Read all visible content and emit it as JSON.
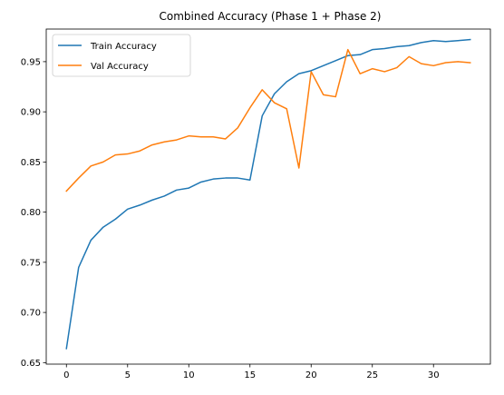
{
  "chart_data": {
    "type": "line",
    "title": "Combined Accuracy (Phase 1 + Phase 2)",
    "xlabel": "",
    "ylabel": "",
    "xlim": [
      -1.65,
      34.65
    ],
    "ylim": [
      0.6485,
      0.9825
    ],
    "grid": false,
    "legend_position": "top-left",
    "x_ticks": [
      0,
      5,
      10,
      15,
      20,
      25,
      30
    ],
    "y_ticks": [
      0.65,
      0.7,
      0.75,
      0.8,
      0.85,
      0.9,
      0.95
    ],
    "x_tick_labels": [
      "0",
      "5",
      "10",
      "15",
      "20",
      "25",
      "30"
    ],
    "y_tick_labels": [
      "0.65",
      "0.70",
      "0.75",
      "0.80",
      "0.85",
      "0.90",
      "0.95"
    ],
    "x": [
      0,
      1,
      2,
      3,
      4,
      5,
      6,
      7,
      8,
      9,
      10,
      11,
      12,
      13,
      14,
      15,
      16,
      17,
      18,
      19,
      20,
      21,
      22,
      23,
      24,
      25,
      26,
      27,
      28,
      29,
      30,
      31,
      32,
      33
    ],
    "series": [
      {
        "name": "Train Accuracy",
        "color": "#1f77b4",
        "values": [
          0.664,
          0.745,
          0.772,
          0.785,
          0.793,
          0.803,
          0.807,
          0.812,
          0.816,
          0.822,
          0.824,
          0.83,
          0.833,
          0.834,
          0.834,
          0.832,
          0.896,
          0.918,
          0.93,
          0.938,
          0.941,
          0.946,
          0.951,
          0.956,
          0.957,
          0.962,
          0.963,
          0.965,
          0.966,
          0.969,
          0.971,
          0.97,
          0.971,
          0.972
        ]
      },
      {
        "name": "Val Accuracy",
        "color": "#ff7f0e",
        "values": [
          0.821,
          0.834,
          0.846,
          0.85,
          0.857,
          0.858,
          0.861,
          0.867,
          0.87,
          0.872,
          0.876,
          0.875,
          0.875,
          0.873,
          0.884,
          0.904,
          0.922,
          0.909,
          0.903,
          0.844,
          0.94,
          0.917,
          0.915,
          0.962,
          0.938,
          0.943,
          0.94,
          0.944,
          0.955,
          0.948,
          0.946,
          0.949,
          0.95,
          0.949
        ]
      }
    ]
  }
}
